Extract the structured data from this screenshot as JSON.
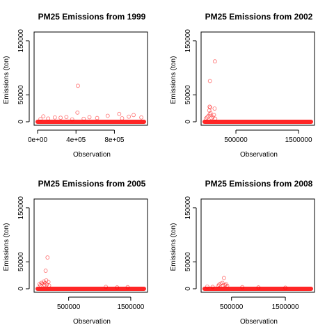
{
  "chart_data": [
    {
      "type": "scatter",
      "title": "PM25 Emissions from 1999",
      "xlabel": "Observation",
      "ylabel": "Emissions (ton)",
      "xlim": [
        0,
        1108469
      ],
      "ylim": [
        0,
        160000
      ],
      "x_ticks": [
        {
          "value": 0,
          "label": "0e+00"
        },
        {
          "value": 400000,
          "label": "4e+05"
        },
        {
          "value": 800000,
          "label": "8e+05"
        }
      ],
      "y_ticks": [
        {
          "value": 0,
          "label": "0"
        },
        {
          "value": 50000,
          "label": "50000"
        },
        {
          "value": 150000,
          "label": "150000"
        }
      ],
      "points": [
        {
          "x": 420000,
          "y": 66700
        },
        {
          "x": 415000,
          "y": 17000
        },
        {
          "x": 850000,
          "y": 14500
        },
        {
          "x": 1000000,
          "y": 12500
        },
        {
          "x": 730000,
          "y": 11000
        },
        {
          "x": 60000,
          "y": 10000
        },
        {
          "x": 300000,
          "y": 9000
        },
        {
          "x": 540000,
          "y": 8500
        },
        {
          "x": 180000,
          "y": 8000
        },
        {
          "x": 950000,
          "y": 9500
        },
        {
          "x": 620000,
          "y": 7000
        },
        {
          "x": 240000,
          "y": 7500
        },
        {
          "x": 110000,
          "y": 6000
        },
        {
          "x": 880000,
          "y": 6500
        },
        {
          "x": 480000,
          "y": 5500
        },
        {
          "x": 30000,
          "y": 5000
        },
        {
          "x": 1080000,
          "y": 8000
        },
        {
          "x": 360000,
          "y": 4500
        }
      ]
    },
    {
      "type": "scatter",
      "title": "PM25 Emissions from 2002",
      "xlabel": "Observation",
      "ylabel": "Emissions (ton)",
      "xlim": [
        0,
        1698677
      ],
      "ylim": [
        0,
        160000
      ],
      "x_ticks": [
        {
          "value": 500000,
          "label": "500000"
        },
        {
          "value": 1500000,
          "label": "1500000"
        }
      ],
      "y_ticks": [
        {
          "value": 0,
          "label": "0"
        },
        {
          "value": 50000,
          "label": "50000"
        },
        {
          "value": 150000,
          "label": "150000"
        }
      ],
      "points": [
        {
          "x": 165000,
          "y": 112000
        },
        {
          "x": 85000,
          "y": 75500
        },
        {
          "x": 80000,
          "y": 28000
        },
        {
          "x": 90000,
          "y": 26500
        },
        {
          "x": 160000,
          "y": 24500
        },
        {
          "x": 75000,
          "y": 21000
        },
        {
          "x": 95000,
          "y": 16500
        },
        {
          "x": 82000,
          "y": 14000
        },
        {
          "x": 150000,
          "y": 12500
        },
        {
          "x": 60000,
          "y": 10500
        },
        {
          "x": 130000,
          "y": 9500
        },
        {
          "x": 40000,
          "y": 8000
        },
        {
          "x": 110000,
          "y": 7000
        },
        {
          "x": 20000,
          "y": 6000
        },
        {
          "x": 170000,
          "y": 5500
        }
      ]
    },
    {
      "type": "scatter",
      "title": "PM25 Emissions from 2005",
      "xlabel": "Observation",
      "ylabel": "Emissions (ton)",
      "xlim": [
        0,
        1713850
      ],
      "ylim": [
        0,
        160000
      ],
      "x_ticks": [
        {
          "value": 500000,
          "label": "500000"
        },
        {
          "value": 1500000,
          "label": "1500000"
        }
      ],
      "y_ticks": [
        {
          "value": 0,
          "label": "0"
        },
        {
          "value": 50000,
          "label": "50000"
        },
        {
          "value": 150000,
          "label": "150000"
        }
      ],
      "points": [
        {
          "x": 160000,
          "y": 58000
        },
        {
          "x": 130000,
          "y": 33500
        },
        {
          "x": 140000,
          "y": 15500
        },
        {
          "x": 100000,
          "y": 13500
        },
        {
          "x": 175000,
          "y": 12500
        },
        {
          "x": 60000,
          "y": 11000
        },
        {
          "x": 120000,
          "y": 10500
        },
        {
          "x": 80000,
          "y": 9500
        },
        {
          "x": 30000,
          "y": 8500
        },
        {
          "x": 150000,
          "y": 8000
        },
        {
          "x": 110000,
          "y": 7000
        },
        {
          "x": 45000,
          "y": 6500
        },
        {
          "x": 185000,
          "y": 6000
        },
        {
          "x": 1100000,
          "y": 3500
        },
        {
          "x": 1450000,
          "y": 3000
        },
        {
          "x": 1280000,
          "y": 2500
        }
      ]
    },
    {
      "type": "scatter",
      "title": "PM25 Emissions from 2008",
      "xlabel": "Observation",
      "ylabel": "Emissions (ton)",
      "xlim": [
        0,
        1976655
      ],
      "ylim": [
        0,
        160000
      ],
      "x_ticks": [
        {
          "value": 500000,
          "label": "500000"
        },
        {
          "value": 1500000,
          "label": "1500000"
        }
      ],
      "y_ticks": [
        {
          "value": 0,
          "label": "0"
        },
        {
          "value": 50000,
          "label": "50000"
        },
        {
          "value": 150000,
          "label": "150000"
        }
      ],
      "points": [
        {
          "x": 360000,
          "y": 20000
        },
        {
          "x": 330000,
          "y": 11000
        },
        {
          "x": 300000,
          "y": 9500
        },
        {
          "x": 400000,
          "y": 8500
        },
        {
          "x": 270000,
          "y": 7500
        },
        {
          "x": 380000,
          "y": 7000
        },
        {
          "x": 340000,
          "y": 6000
        },
        {
          "x": 420000,
          "y": 5500
        },
        {
          "x": 250000,
          "y": 5000
        },
        {
          "x": 50000,
          "y": 4000
        },
        {
          "x": 150000,
          "y": 3500
        },
        {
          "x": 700000,
          "y": 3000
        },
        {
          "x": 1000000,
          "y": 2500
        },
        {
          "x": 1500000,
          "y": 2000
        }
      ]
    }
  ],
  "colors": {
    "point": "#ff0000",
    "dense_band": "#ff0000",
    "axis": "#000000",
    "background": "#ffffff"
  }
}
